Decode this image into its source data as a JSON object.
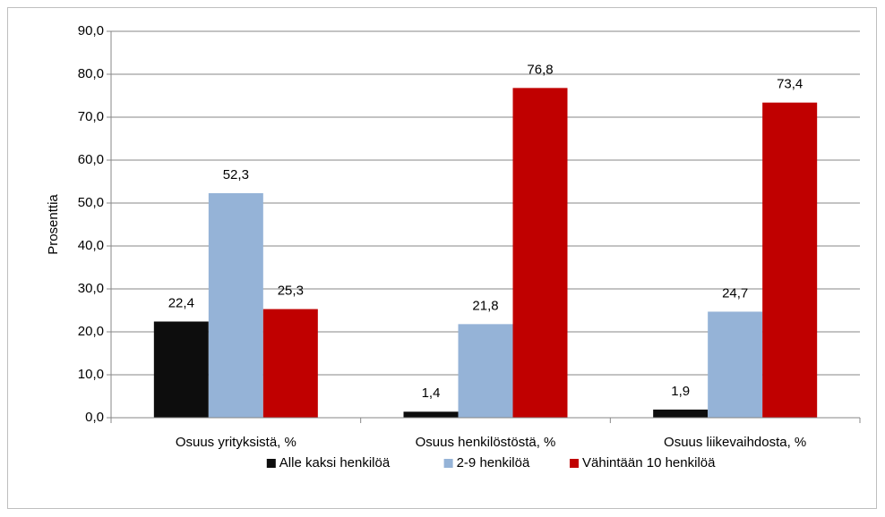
{
  "chart_data": {
    "type": "bar",
    "categories": [
      "Osuus yrityksistä, %",
      "Osuus henkilöstöstä, %",
      "Osuus liikevaihdosta, %"
    ],
    "series": [
      {
        "name": "Alle kaksi henkilöä",
        "color": "#0d0d0d",
        "values": [
          22.4,
          1.4,
          1.9
        ],
        "value_labels": [
          "22,4",
          "1,4",
          "1,9"
        ]
      },
      {
        "name": "2-9 henkilöä",
        "color": "#95b3d7",
        "values": [
          52.3,
          21.8,
          24.7
        ],
        "value_labels": [
          "52,3",
          "21,8",
          "24,7"
        ]
      },
      {
        "name": "Vähintään 10 henkilöä",
        "color": "#c00000",
        "values": [
          25.3,
          76.8,
          73.4
        ],
        "value_labels": [
          "25,3",
          "76,8",
          "73,4"
        ]
      }
    ],
    "y_label": "Prosenttia",
    "ylim": [
      0,
      90
    ],
    "yticks": [
      {
        "value": 0,
        "label": "0,0"
      },
      {
        "value": 10,
        "label": "10,0"
      },
      {
        "value": 20,
        "label": "20,0"
      },
      {
        "value": 30,
        "label": "30,0"
      },
      {
        "value": 40,
        "label": "40,0"
      },
      {
        "value": 50,
        "label": "50,0"
      },
      {
        "value": 60,
        "label": "60,0"
      },
      {
        "value": 70,
        "label": "70,0"
      },
      {
        "value": 80,
        "label": "80,0"
      },
      {
        "value": 90,
        "label": "90,0"
      }
    ],
    "grid": true,
    "legend": "bottom"
  }
}
